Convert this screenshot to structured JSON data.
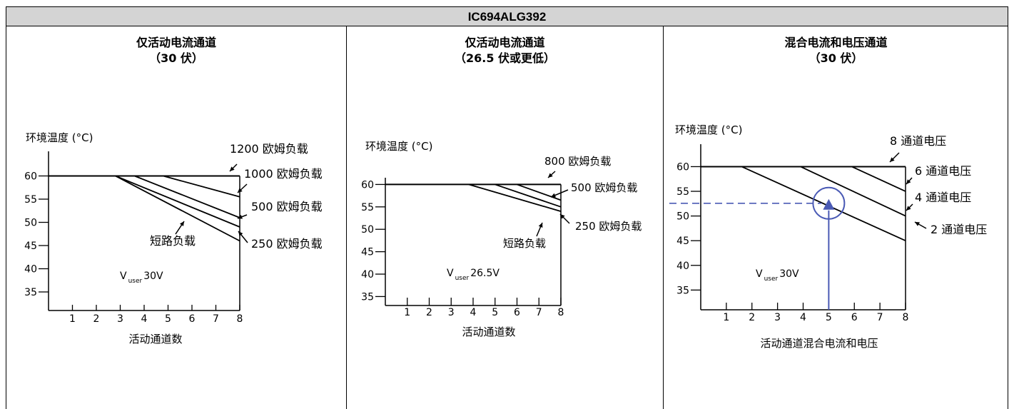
{
  "header": {
    "title": "IC694ALG392"
  },
  "panels": [
    {
      "title_line1": "仅活动电流通道",
      "title_line2": "（30 伏）"
    },
    {
      "title_line1": "仅活动电流通道",
      "title_line2": "（26.5 伏或更低）"
    },
    {
      "title_line1": "混合电流和电压通道",
      "title_line2": "（30 伏）"
    }
  ],
  "chart_data": [
    {
      "type": "line",
      "ylabel": "环境温度 (°C)",
      "xlabel": "活动通道数",
      "x_ticks": [
        "1",
        "2",
        "3",
        "4",
        "5",
        "6",
        "7",
        "8"
      ],
      "y_ticks": [
        "35",
        "40",
        "45",
        "50",
        "55",
        "60"
      ],
      "xlim": [
        0,
        8
      ],
      "ylim": [
        31,
        61
      ],
      "annotation_v": "V",
      "annotation_sub": "user",
      "annotation_value": "30V",
      "series": [
        {
          "name": "1200 欧姆负载",
          "points": [
            [
              8,
              60
            ]
          ]
        },
        {
          "name": "1000 欧姆负载",
          "points": [
            [
              4.8,
              60
            ],
            [
              8,
              55.5
            ]
          ]
        },
        {
          "name": "500 欧姆负载",
          "points": [
            [
              3.6,
              60
            ],
            [
              8,
              51
            ]
          ]
        },
        {
          "name": "250 欧姆负载",
          "points": [
            [
              2.8,
              60
            ],
            [
              8,
              49
            ]
          ]
        },
        {
          "name": "短路负载",
          "points": [
            [
              2.8,
              60
            ],
            [
              8,
              46
            ]
          ]
        }
      ]
    },
    {
      "type": "line",
      "ylabel": "环境温度 (°C)",
      "xlabel": "活动通道数",
      "x_ticks": [
        "1",
        "2",
        "3",
        "4",
        "5",
        "6",
        "7",
        "8"
      ],
      "y_ticks": [
        "35",
        "40",
        "45",
        "50",
        "55",
        "60"
      ],
      "xlim": [
        0,
        8
      ],
      "ylim": [
        33,
        61.5
      ],
      "annotation_v": "V",
      "annotation_sub": "user",
      "annotation_value": "26.5V",
      "series": [
        {
          "name": "800 欧姆负载",
          "points": [
            [
              8,
              60
            ]
          ]
        },
        {
          "name": "500 欧姆负载",
          "points": [
            [
              6,
              60
            ],
            [
              8,
              56.5
            ]
          ]
        },
        {
          "name": "250 欧姆负载",
          "points": [
            [
              5,
              60
            ],
            [
              8,
              55
            ]
          ]
        },
        {
          "name": "短路负载",
          "points": [
            [
              3.8,
              60
            ],
            [
              8,
              54
            ]
          ]
        }
      ]
    },
    {
      "type": "line",
      "ylabel": "环境温度 (°C)",
      "xlabel": "活动通道混合电流和电压",
      "x_ticks": [
        "1",
        "2",
        "3",
        "4",
        "5",
        "6",
        "7",
        "8"
      ],
      "y_ticks": [
        "35",
        "40",
        "45",
        "50",
        "55",
        "60"
      ],
      "xlim": [
        0,
        8
      ],
      "ylim": [
        31,
        60.5
      ],
      "annotation_v": "V",
      "annotation_sub": "user",
      "annotation_value": "30V",
      "series": [
        {
          "name": "8 通道电压",
          "points": [
            [
              8,
              60
            ]
          ]
        },
        {
          "name": "6 通道电压",
          "points": [
            [
              5.9,
              60
            ],
            [
              8,
              55
            ]
          ]
        },
        {
          "name": "4 通道电压",
          "points": [
            [
              3.9,
              60
            ],
            [
              8,
              50
            ]
          ]
        },
        {
          "name": "2 通道电压",
          "points": [
            [
              1.6,
              60
            ],
            [
              8,
              45
            ]
          ]
        }
      ],
      "marker": {
        "x": 5,
        "y": 52,
        "color": "#4a5ab5"
      }
    }
  ]
}
